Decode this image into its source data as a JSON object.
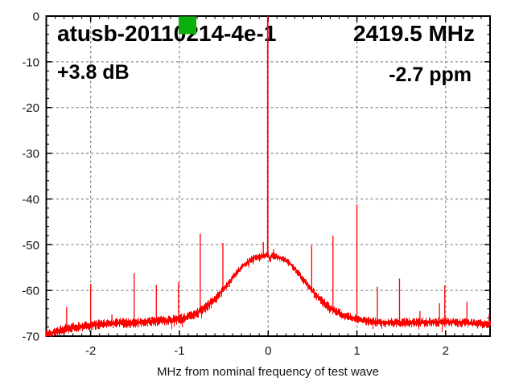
{
  "chart_data": {
    "type": "line",
    "title": "atusb-20110214-4e-1",
    "annotations": {
      "center_frequency": "2419.5 MHz",
      "power_offset": "+3.8 dB",
      "frequency_error": "-2.7 ppm"
    },
    "xlabel": "MHz from nominal frequency of test wave",
    "ylabel": "",
    "xlim": [
      -2.5,
      2.5
    ],
    "ylim": [
      -70,
      0
    ],
    "xticks": [
      {
        "value": -2,
        "label": "-2"
      },
      {
        "value": -1,
        "label": "-1"
      },
      {
        "value": 0,
        "label": "0"
      },
      {
        "value": 1,
        "label": "1"
      },
      {
        "value": 2,
        "label": "2"
      }
    ],
    "yticks": [
      {
        "value": 0,
        "label": "0"
      },
      {
        "value": -10,
        "label": "-10"
      },
      {
        "value": -20,
        "label": "-20"
      },
      {
        "value": -30,
        "label": "-30"
      },
      {
        "value": -40,
        "label": "-40"
      },
      {
        "value": -50,
        "label": "-50"
      },
      {
        "value": -60,
        "label": "-60"
      },
      {
        "value": -70,
        "label": "-70"
      }
    ],
    "minor_tick_step_x": 0.1,
    "minor_tick_step_y": 2,
    "grid": true,
    "grid_color": "#8c8c8c",
    "trace_color": "#ff0000",
    "carrier": {
      "x": -0.005,
      "peak_db": 0
    },
    "envelope": [
      [
        -2.5,
        -69.6
      ],
      [
        -2.42,
        -69.2
      ],
      [
        -2.3,
        -68.4
      ],
      [
        -2.15,
        -67.9
      ],
      [
        -2.0,
        -67.6
      ],
      [
        -1.85,
        -67.3
      ],
      [
        -1.7,
        -67.1
      ],
      [
        -1.55,
        -67.1
      ],
      [
        -1.4,
        -66.9
      ],
      [
        -1.25,
        -66.7
      ],
      [
        -1.1,
        -66.5
      ],
      [
        -1.0,
        -66.3
      ],
      [
        -0.9,
        -65.8
      ],
      [
        -0.8,
        -64.9
      ],
      [
        -0.7,
        -63.6
      ],
      [
        -0.6,
        -61.9
      ],
      [
        -0.5,
        -59.6
      ],
      [
        -0.45,
        -58.4
      ],
      [
        -0.4,
        -57.2
      ],
      [
        -0.35,
        -56.0
      ],
      [
        -0.3,
        -54.9
      ],
      [
        -0.25,
        -54.0
      ],
      [
        -0.2,
        -53.3
      ],
      [
        -0.15,
        -52.8
      ],
      [
        -0.1,
        -52.5
      ],
      [
        -0.05,
        -52.3
      ],
      [
        0.0,
        -52.3
      ],
      [
        0.02,
        -53.3
      ],
      [
        0.035,
        -52.6
      ],
      [
        0.05,
        -52.3
      ],
      [
        0.1,
        -52.6
      ],
      [
        0.15,
        -53.0
      ],
      [
        0.2,
        -53.5
      ],
      [
        0.25,
        -54.2
      ],
      [
        0.3,
        -55.3
      ],
      [
        0.35,
        -56.5
      ],
      [
        0.4,
        -57.8
      ],
      [
        0.45,
        -59.0
      ],
      [
        0.5,
        -60.1
      ],
      [
        0.55,
        -61.3
      ],
      [
        0.6,
        -62.3
      ],
      [
        0.7,
        -63.9
      ],
      [
        0.8,
        -65.0
      ],
      [
        0.9,
        -65.8
      ],
      [
        1.0,
        -66.3
      ],
      [
        1.15,
        -66.8
      ],
      [
        1.3,
        -67.0
      ],
      [
        1.6,
        -67.0
      ],
      [
        1.9,
        -66.9
      ],
      [
        2.2,
        -67.0
      ],
      [
        2.4,
        -67.3
      ],
      [
        2.5,
        -67.2
      ]
    ],
    "spurs": [
      [
        -2.27,
        -63.6
      ],
      [
        -2.0,
        -58.6
      ],
      [
        -1.76,
        -65.3
      ],
      [
        -1.51,
        -56.2
      ],
      [
        -1.26,
        -58.8
      ],
      [
        -1.01,
        -58.2
      ],
      [
        -0.765,
        -47.6
      ],
      [
        -0.51,
        -49.6
      ],
      [
        -0.055,
        -49.4
      ],
      [
        0.06,
        -51.0
      ],
      [
        0.49,
        -50.2
      ],
      [
        0.73,
        -48.0
      ],
      [
        1.0,
        -41.2
      ],
      [
        1.23,
        -59.2
      ],
      [
        1.48,
        -57.4
      ],
      [
        1.71,
        -64.5
      ],
      [
        1.93,
        -62.8
      ],
      [
        1.99,
        -58.9
      ],
      [
        2.24,
        -62.5
      ],
      [
        2.49,
        -65.2
      ]
    ],
    "noise": {
      "seed": 42,
      "band_half_db_left": 0.95,
      "band_half_db_center": 0.68,
      "band_half_db_right": 0.88
    },
    "marker": {
      "color": "#0cb00c",
      "shape": "square"
    }
  }
}
